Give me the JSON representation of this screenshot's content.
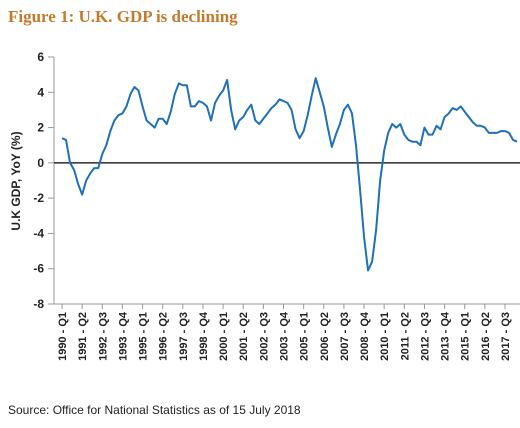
{
  "chart_data": {
    "type": "line",
    "title": "Figure 1: U.K. GDP is declining",
    "y_label": "U.K GDP, YoY (%)",
    "source": "Source: Office for National Statistics as of 15 July 2018",
    "categories": [
      "1990 - Q1",
      null,
      null,
      null,
      null,
      "1991 - Q2",
      null,
      null,
      null,
      null,
      "1992 - Q3",
      null,
      null,
      null,
      null,
      "1993 - Q4",
      null,
      null,
      null,
      null,
      "1995 - Q1",
      null,
      null,
      null,
      null,
      "1996 - Q2",
      null,
      null,
      null,
      null,
      "1997 - Q3",
      null,
      null,
      null,
      null,
      "1998 - Q4",
      null,
      null,
      null,
      null,
      "2000 - Q1",
      null,
      null,
      null,
      null,
      "2001 - Q2",
      null,
      null,
      null,
      null,
      "2002 - Q3",
      null,
      null,
      null,
      null,
      "2003 - Q4",
      null,
      null,
      null,
      null,
      "2005 - Q1",
      null,
      null,
      null,
      null,
      "2006 - Q2",
      null,
      null,
      null,
      null,
      "2007 - Q3",
      null,
      null,
      null,
      null,
      "2008 - Q4",
      null,
      null,
      null,
      null,
      "2010 - Q1",
      null,
      null,
      null,
      null,
      "2011 - Q2",
      null,
      null,
      null,
      null,
      "2012 - Q3",
      null,
      null,
      null,
      null,
      "2013 - Q4",
      null,
      null,
      null,
      null,
      "2015 - Q1",
      null,
      null,
      null,
      null,
      "2016 - Q2",
      null,
      null,
      null,
      null,
      "2017 - Q3",
      null,
      null,
      null
    ],
    "series": [
      {
        "name": "U.K GDP, YoY (%)",
        "color": "#1f70b8",
        "values": [
          1.4,
          1.3,
          0,
          -0.4,
          -1.2,
          -1.8,
          -1.0,
          -0.6,
          -0.3,
          -0.3,
          0.5,
          1.0,
          1.8,
          2.4,
          2.7,
          2.8,
          3.2,
          3.9,
          4.3,
          4.1,
          3.2,
          2.4,
          2.2,
          2.0,
          2.5,
          2.5,
          2.2,
          2.9,
          3.9,
          4.5,
          4.4,
          4.4,
          3.2,
          3.2,
          3.5,
          3.4,
          3.2,
          2.4,
          3.4,
          3.8,
          4.1,
          4.7,
          3.0,
          1.9,
          2.4,
          2.6,
          3.0,
          3.3,
          2.4,
          2.2,
          2.5,
          2.8,
          3.1,
          3.3,
          3.6,
          3.5,
          3.4,
          3.0,
          1.9,
          1.4,
          1.8,
          2.7,
          3.8,
          4.8,
          4.0,
          3.2,
          2.0,
          0.9,
          1.6,
          2.2,
          3.0,
          3.3,
          2.8,
          1.0,
          -1.5,
          -4.2,
          -6.1,
          -5.6,
          -3.8,
          -1.0,
          0.7,
          1.7,
          2.2,
          2.0,
          2.2,
          1.6,
          1.3,
          1.2,
          1.2,
          1.0,
          2.0,
          1.6,
          1.6,
          2.1,
          1.9,
          2.6,
          2.8,
          3.1,
          3.0,
          3.2,
          2.9,
          2.6,
          2.3,
          2.1,
          2.1,
          2.0,
          1.7,
          1.7,
          1.7,
          1.8,
          1.8,
          1.7,
          1.3,
          1.2
        ]
      }
    ],
    "ylim": [
      -8,
      6
    ],
    "yticks": [
      -8,
      -6,
      -4,
      -2,
      0,
      2,
      4,
      6
    ],
    "zero_line": true
  }
}
